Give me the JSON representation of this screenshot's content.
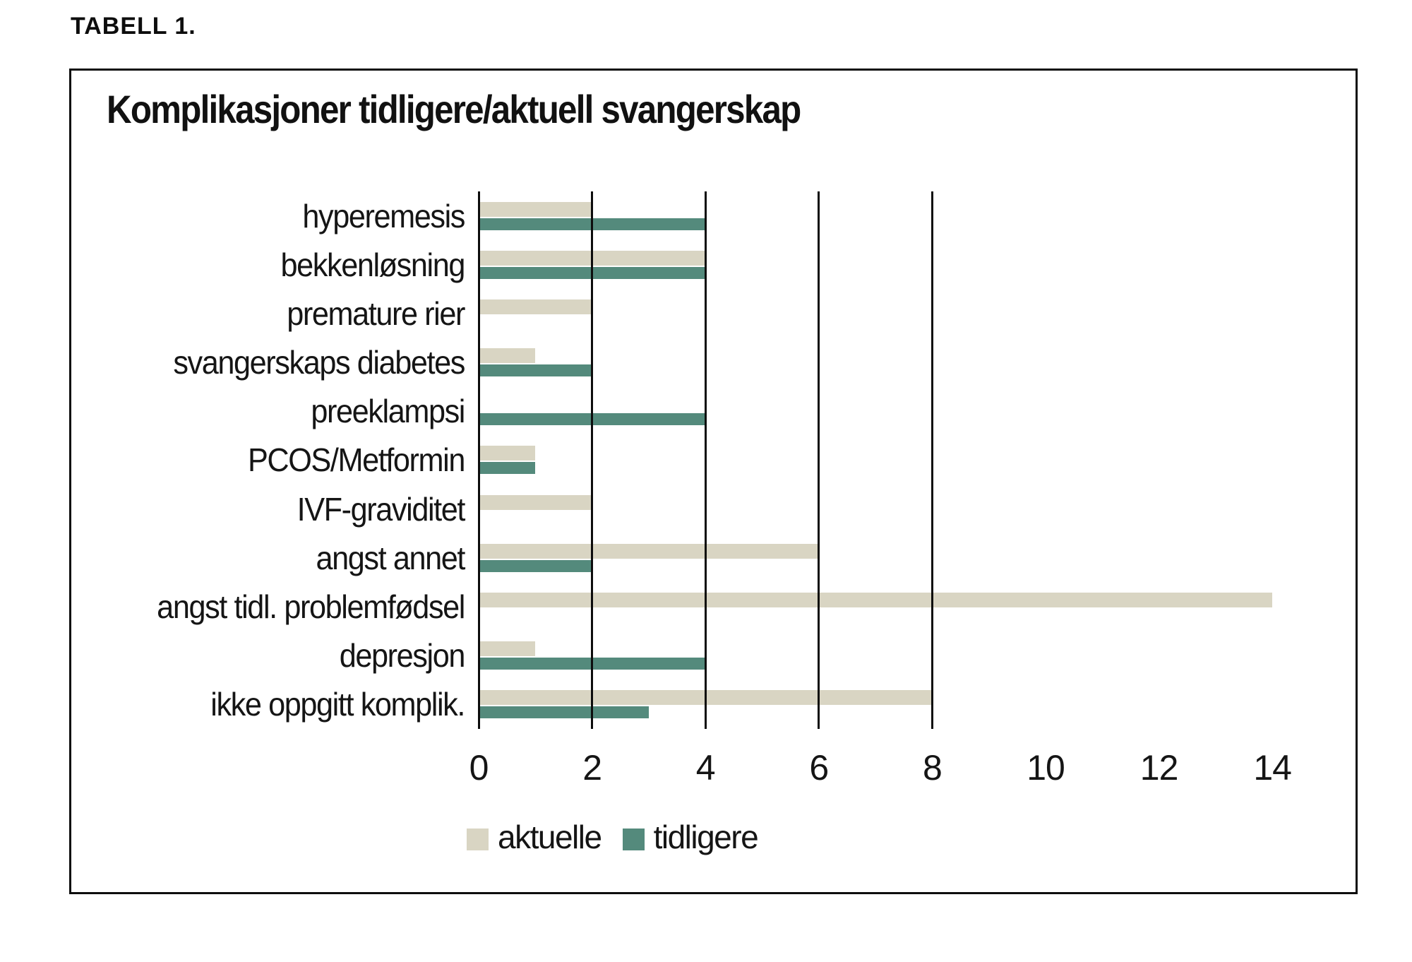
{
  "page": {
    "tag_label": "TABELL 1."
  },
  "chart_data": {
    "type": "bar",
    "orientation": "horizontal",
    "title": "Komplikasjoner tidligere/aktuell svangerskap",
    "categories": [
      "hyperemesis",
      "bekkenløsning",
      "premature rier",
      "svangerskaps diabetes",
      "preeklampsi",
      "PCOS/Metformin",
      "IVF-graviditet",
      "angst annet",
      "angst tidl. problemfødsel",
      "depresjon",
      "ikke oppgitt komplik."
    ],
    "series": [
      {
        "name": "aktuelle",
        "color": "#d9d5c3",
        "values": [
          2,
          4,
          2,
          1,
          0,
          1,
          2,
          6,
          14,
          1,
          8
        ]
      },
      {
        "name": "tidligere",
        "color": "#548a7c",
        "values": [
          4,
          4,
          0,
          2,
          4,
          1,
          0,
          2,
          0,
          4,
          3
        ]
      }
    ],
    "xlim": [
      0,
      14
    ],
    "x_ticks": [
      0,
      2,
      4,
      6,
      8,
      10,
      12,
      14
    ],
    "gridline_values": [
      0,
      2,
      4,
      6,
      8
    ],
    "grid": "vertical-only",
    "axis_baseline": "none",
    "legend_position": "bottom"
  },
  "colors": {
    "background": "#ffffff",
    "frame_border": "#0d0d0d",
    "text": "#1a1a1a"
  }
}
